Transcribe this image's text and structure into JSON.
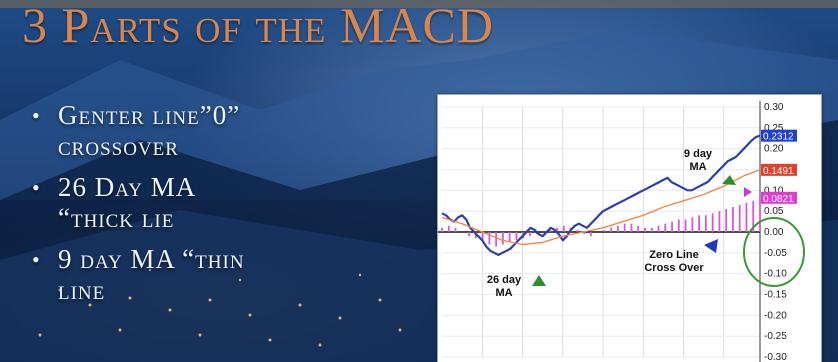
{
  "slide": {
    "title": "3 Parts of the MACD",
    "bullets": [
      {
        "marker": "•",
        "text": "Genter line”0”\ncrossover"
      },
      {
        "marker": "•",
        "text": "26 Day MA\n“thick lie"
      },
      {
        "marker": "•",
        "text": "9 day MA “thin\nline"
      }
    ]
  },
  "chart_data": {
    "type": "line",
    "y_ticks": [
      "0.30",
      "0.25",
      "0.20",
      "0.15",
      "0.10",
      "0.05",
      "0.00",
      "-0.05",
      "-0.10",
      "-0.15",
      "-0.20",
      "-0.25",
      "-0.30"
    ],
    "ylim": [
      -0.3,
      0.3
    ],
    "value_boxes": [
      {
        "text": "0.2312",
        "value": 0.2312,
        "color": "#1f3fd1"
      },
      {
        "text": "0.1491",
        "value": 0.1491,
        "color": "#e0402e"
      },
      {
        "text": "0.0821",
        "value": 0.0821,
        "color": "#e33ad6"
      }
    ],
    "series": [
      {
        "role": "thick",
        "color": "#2c3fb0",
        "x": [
          0,
          4,
          8,
          12,
          16,
          20,
          24,
          28,
          32,
          36,
          40,
          44,
          48,
          52,
          56,
          60,
          64,
          68,
          72,
          76,
          80,
          84,
          88,
          92,
          96,
          100,
          104,
          108,
          112,
          116,
          120,
          124,
          128,
          132,
          136,
          140,
          144,
          148,
          152,
          156,
          160,
          164,
          168,
          172,
          176,
          180,
          184,
          188,
          192,
          196,
          200,
          204,
          208,
          212,
          216,
          220,
          224,
          228,
          232,
          236,
          240,
          244,
          248,
          252,
          256,
          260,
          264,
          268,
          272,
          276,
          280,
          284,
          288,
          292,
          296,
          300,
          304,
          308,
          312,
          316
        ],
        "y": [
          0.045,
          0.04,
          0.03,
          0.025,
          0.035,
          0.04,
          0.03,
          0.01,
          0.0,
          -0.01,
          -0.02,
          -0.035,
          -0.045,
          -0.05,
          -0.055,
          -0.05,
          -0.045,
          -0.04,
          -0.03,
          -0.02,
          -0.01,
          0.0,
          0.01,
          0.005,
          -0.005,
          -0.01,
          0.0,
          0.01,
          0.005,
          -0.005,
          -0.02,
          -0.01,
          0.005,
          0.015,
          0.02,
          0.015,
          0.01,
          0.02,
          0.03,
          0.04,
          0.05,
          0.055,
          0.06,
          0.065,
          0.07,
          0.075,
          0.08,
          0.085,
          0.09,
          0.095,
          0.1,
          0.105,
          0.11,
          0.115,
          0.12,
          0.125,
          0.13,
          0.12,
          0.115,
          0.11,
          0.105,
          0.1,
          0.1,
          0.105,
          0.11,
          0.115,
          0.12,
          0.13,
          0.14,
          0.15,
          0.16,
          0.17,
          0.175,
          0.18,
          0.19,
          0.2,
          0.21,
          0.22,
          0.228,
          0.2312
        ]
      },
      {
        "role": "thin",
        "color": "#f08a4b",
        "x": [
          0,
          20,
          40,
          60,
          80,
          100,
          120,
          140,
          160,
          180,
          200,
          220,
          240,
          260,
          280,
          300,
          316
        ],
        "y": [
          0.035,
          0.02,
          0.0,
          -0.02,
          -0.03,
          -0.025,
          -0.01,
          0.0,
          0.01,
          0.025,
          0.04,
          0.06,
          0.075,
          0.09,
          0.11,
          0.135,
          0.1491
        ]
      }
    ],
    "histogram": {
      "color": "#d35ad6",
      "values": [
        0.01,
        0.015,
        0.01,
        0.0,
        -0.01,
        -0.015,
        -0.025,
        -0.03,
        -0.035,
        -0.03,
        -0.025,
        -0.02,
        -0.015,
        -0.01,
        -0.005,
        0.0,
        0.005,
        0.01,
        0.015,
        0.01,
        0.005,
        -0.005,
        -0.01,
        0.0,
        0.005,
        0.01,
        0.015,
        0.02,
        0.02,
        0.015,
        0.01,
        0.01,
        0.015,
        0.02,
        0.025,
        0.03,
        0.03,
        0.035,
        0.04,
        0.04,
        0.045,
        0.05,
        0.055,
        0.06,
        0.065,
        0.07,
        0.075,
        0.08
      ]
    },
    "annotations": [
      {
        "id": "nine",
        "text": [
          "9 day",
          "MA"
        ]
      },
      {
        "id": "twentysix",
        "text": [
          "26 day",
          "MA"
        ]
      },
      {
        "id": "zero",
        "text": [
          "Zero Line",
          "Cross Over"
        ]
      }
    ]
  }
}
